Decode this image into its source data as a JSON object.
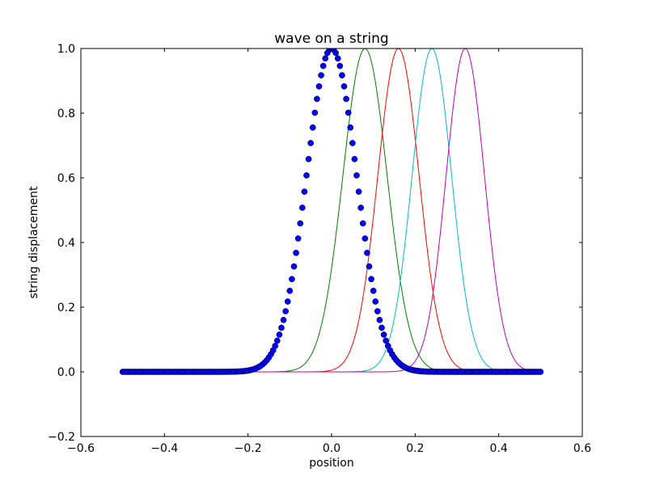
{
  "chart_data": {
    "type": "line",
    "title": "wave on a string",
    "xlabel": "position",
    "ylabel": "string displacement",
    "xlim": [
      -0.6,
      0.6
    ],
    "ylim": [
      -0.2,
      1.0
    ],
    "xticks": [
      "−0.6",
      "−0.4",
      "−0.2",
      "0.0",
      "0.2",
      "0.4",
      "0.6"
    ],
    "yticks": [
      "−0.2",
      "0.0",
      "0.2",
      "0.4",
      "0.6",
      "0.8",
      "1.0"
    ],
    "grid": false,
    "x_range": [
      -0.5,
      0.5
    ],
    "series": [
      {
        "style": "markers",
        "color": "#0000ff",
        "peak_x": 0.0,
        "peak_y": 1.0,
        "width": 0.085
      },
      {
        "style": "line",
        "color": "#008000",
        "peak_x": 0.08,
        "peak_y": 1.0,
        "width": 0.075
      },
      {
        "style": "line",
        "color": "#ff0000",
        "peak_x": 0.16,
        "peak_y": 1.0,
        "width": 0.07
      },
      {
        "style": "line",
        "color": "#00bfbf",
        "peak_x": 0.24,
        "peak_y": 1.0,
        "width": 0.067
      },
      {
        "style": "line",
        "color": "#bf00bf",
        "peak_x": 0.32,
        "peak_y": 1.0,
        "width": 0.065
      }
    ]
  }
}
